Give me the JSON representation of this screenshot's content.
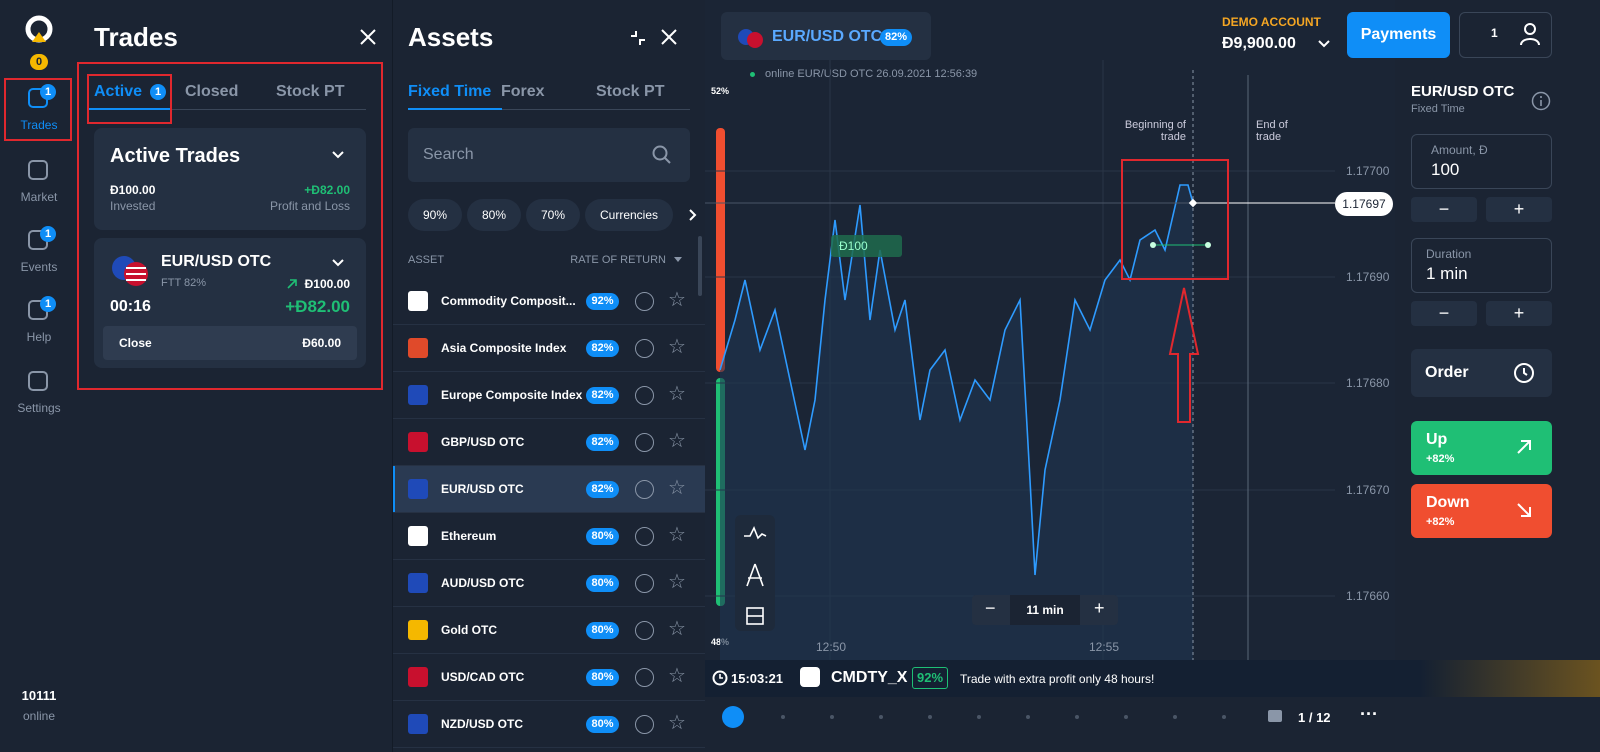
{
  "sidebar": {
    "balance_badge": "0",
    "nav": [
      {
        "label": "Trades",
        "badge": "1"
      },
      {
        "label": "Market"
      },
      {
        "label": "Events",
        "badge": "1"
      },
      {
        "label": "Help",
        "badge": "1"
      },
      {
        "label": "Settings"
      }
    ],
    "user_count": "10111",
    "status": "online"
  },
  "trades_panel": {
    "title": "Trades",
    "tabs": [
      {
        "label": "Active",
        "badge": "1"
      },
      {
        "label": "Closed"
      },
      {
        "label": "Stock PT"
      }
    ],
    "summary": {
      "title": "Active Trades",
      "invested": "Đ100.00",
      "invested_label": "Invested",
      "profit": "+Đ82.00",
      "profit_label": "Profit and Loss"
    },
    "trade": {
      "asset": "EUR/USD OTC",
      "type": "FTT 82%",
      "amount": "Đ100.00",
      "timer": "00:16",
      "profit": "+Đ82.00",
      "close_label": "Close",
      "close_value": "Đ60.00"
    }
  },
  "assets_panel": {
    "title": "Assets",
    "tabs": [
      "Fixed Time",
      "Forex",
      "Stock PT"
    ],
    "search_placeholder": "Search",
    "filters": [
      "90%",
      "80%",
      "70%",
      "Currencies"
    ],
    "columns": [
      "ASSET",
      "RATE OF RETURN"
    ],
    "rows": [
      {
        "name": "Commodity Composit...",
        "rate": "92%"
      },
      {
        "name": "Asia Composite Index",
        "rate": "82%"
      },
      {
        "name": "Europe Composite Index",
        "rate": "82%"
      },
      {
        "name": "GBP/USD OTC",
        "rate": "82%"
      },
      {
        "name": "EUR/USD OTC",
        "rate": "82%"
      },
      {
        "name": "Ethereum",
        "rate": "80%"
      },
      {
        "name": "AUD/USD OTC",
        "rate": "80%"
      },
      {
        "name": "Gold OTC",
        "rate": "80%"
      },
      {
        "name": "USD/CAD OTC",
        "rate": "80%"
      },
      {
        "name": "NZD/USD OTC",
        "rate": "80%"
      }
    ]
  },
  "chart_header": {
    "asset": "EUR/USD OTC",
    "rate": "82%",
    "account_type": "DEMO ACCOUNT",
    "balance": "Đ9,900.00",
    "payments": "Payments",
    "notifications": "1"
  },
  "chart": {
    "status": "online EUR/USD OTC 26.09.2021 12:56:39",
    "up_share": "52%",
    "down_share": "48%",
    "begin_label": "Beginning of trade",
    "end_label": "End of trade",
    "price_ticks": [
      "1.17700",
      "1.17690",
      "1.17680",
      "1.17670",
      "1.17660"
    ],
    "current_price": "1.17697",
    "trade_amount": "Đ100",
    "time_ticks": [
      "12:50",
      "12:55"
    ],
    "zoom": "11 min"
  },
  "ticker": {
    "clock": "15:03:21",
    "asset": "CMDTY_X",
    "rate": "92%",
    "message": "Trade with extra profit only 48 hours!",
    "page": "1 / 12"
  },
  "order_panel": {
    "asset": "EUR/USD OTC",
    "mode": "Fixed Time",
    "amount_label": "Amount, Đ",
    "amount": "100",
    "duration_label": "Duration",
    "duration": "1 min",
    "order": "Order",
    "up": "Up",
    "up_rate": "+82%",
    "down": "Down",
    "down_rate": "+82%"
  }
}
